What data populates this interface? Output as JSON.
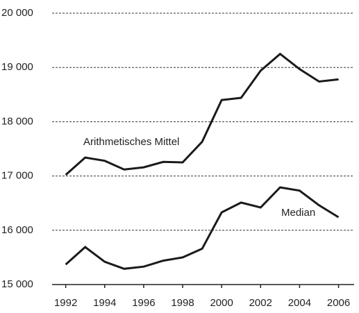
{
  "chart_data": {
    "type": "line",
    "x": [
      1992,
      1993,
      1994,
      1995,
      1996,
      1997,
      1998,
      1999,
      2000,
      2001,
      2002,
      2003,
      2004,
      2005,
      2006
    ],
    "series": [
      {
        "name": "Arithmetisches Mittel",
        "color": "#1a1a1a",
        "values": [
          17020,
          17340,
          17280,
          17120,
          17160,
          17260,
          17250,
          17630,
          18400,
          18440,
          18940,
          19250,
          18970,
          18740,
          18780
        ]
      },
      {
        "name": "Median",
        "color": "#1a1a1a",
        "values": [
          15370,
          15690,
          15420,
          15290,
          15330,
          15440,
          15500,
          15660,
          16330,
          16510,
          16420,
          16790,
          16730,
          16460,
          16240
        ]
      }
    ],
    "xlim": [
      1991.3,
      2006.8
    ],
    "xticks": [
      1992,
      1994,
      1996,
      1998,
      2000,
      2002,
      2004,
      2006
    ],
    "ylim": [
      15000,
      20000
    ],
    "yticks": [
      {
        "value": 15000,
        "label": "15 000"
      },
      {
        "value": 16000,
        "label": "16 000"
      },
      {
        "value": 17000,
        "label": "17 000"
      },
      {
        "value": 18000,
        "label": "18 000"
      },
      {
        "value": 19000,
        "label": "19 000"
      },
      {
        "value": 20000,
        "label": "20 000"
      }
    ],
    "grid": true
  }
}
